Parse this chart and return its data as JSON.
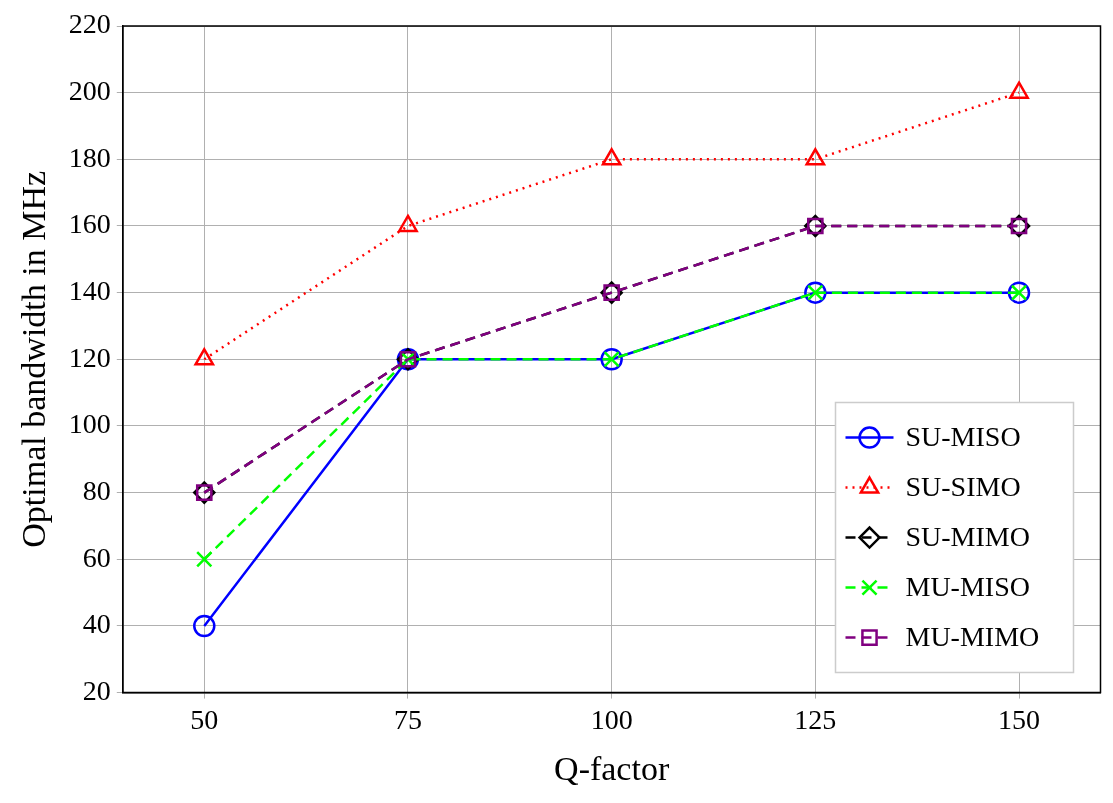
{
  "chart_data": {
    "type": "line",
    "xlabel": "Q-factor",
    "ylabel": "Optimal bandwidth in MHz",
    "x": [
      50,
      75,
      100,
      125,
      150
    ],
    "series": [
      {
        "name": "SU-MISO",
        "color": "#0000ff",
        "marker": "circle",
        "line_style": "solid",
        "values": [
          40,
          120,
          120,
          140,
          140
        ]
      },
      {
        "name": "SU-SIMO",
        "color": "#ff0000",
        "marker": "triangle",
        "line_style": "dotted",
        "values": [
          120,
          160,
          180,
          180,
          200
        ]
      },
      {
        "name": "SU-MIMO",
        "color": "#000000",
        "marker": "diamond",
        "line_style": "dashed",
        "values": [
          80,
          120,
          140,
          160,
          160
        ]
      },
      {
        "name": "MU-MISO",
        "color": "#00ff00",
        "marker": "cross",
        "line_style": "dashed",
        "values": [
          60,
          120,
          120,
          140,
          140
        ]
      },
      {
        "name": "MU-MIMO",
        "color": "#800080",
        "marker": "square",
        "line_style": "dashed",
        "values": [
          80,
          120,
          140,
          160,
          160
        ]
      }
    ],
    "xlim": [
      40,
      160
    ],
    "xticks": [
      50,
      75,
      100,
      125,
      150
    ],
    "ylim": [
      20,
      220
    ],
    "yticks": [
      20,
      40,
      60,
      80,
      100,
      120,
      140,
      160,
      180,
      200,
      220
    ],
    "grid": true,
    "legend": "bottom right"
  }
}
